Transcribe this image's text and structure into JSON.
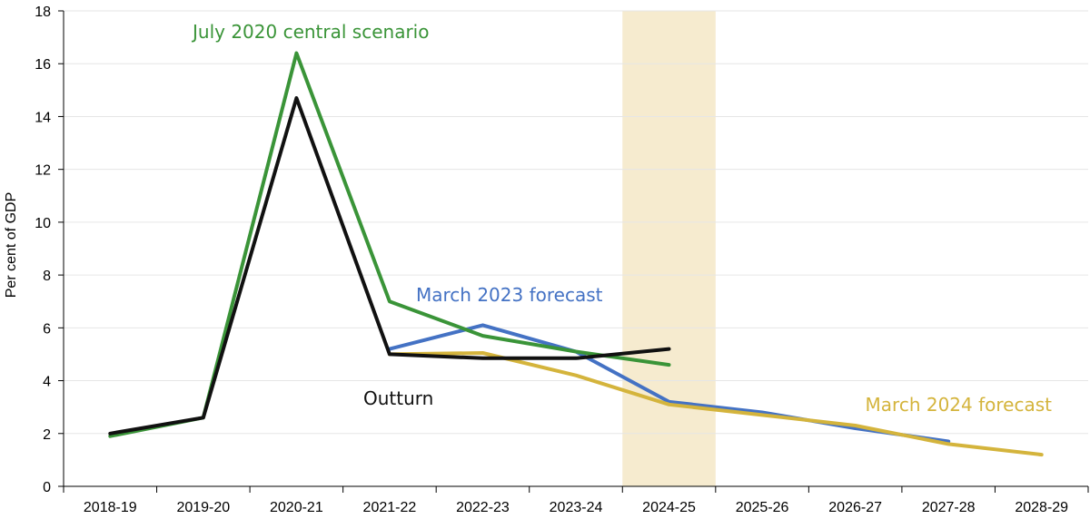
{
  "chart_data": {
    "type": "line",
    "title": "",
    "xlabel": "",
    "ylabel": "Per cent of GDP",
    "ylim": [
      0,
      18
    ],
    "yticks": [
      0,
      2,
      4,
      6,
      8,
      10,
      12,
      14,
      16,
      18
    ],
    "categories": [
      "2018-19",
      "2019-20",
      "2020-21",
      "2021-22",
      "2022-23",
      "2023-24",
      "2024-25",
      "2025-26",
      "2026-27",
      "2027-28",
      "2028-29"
    ],
    "highlight": {
      "category": "2024-25",
      "color": "#f6ebcf"
    },
    "grid": true,
    "series": [
      {
        "name": "March 2023 forecast",
        "color": "#4472c4",
        "values": [
          null,
          null,
          null,
          5.2,
          6.1,
          5.1,
          3.2,
          2.8,
          2.2,
          1.7,
          null
        ]
      },
      {
        "name": "March 2024 forecast",
        "color": "#d4b43c",
        "values": [
          null,
          null,
          null,
          5.0,
          5.05,
          4.2,
          3.1,
          2.7,
          2.3,
          1.6,
          1.2
        ]
      },
      {
        "name": "July 2020 central scenario",
        "color": "#3a9438",
        "values": [
          1.9,
          2.6,
          16.4,
          7.0,
          5.7,
          5.1,
          4.6,
          null,
          null,
          null,
          null
        ]
      },
      {
        "name": "Outturn",
        "color": "#111111",
        "values": [
          2.0,
          2.6,
          14.7,
          5.0,
          4.85,
          4.85,
          5.2,
          null,
          null,
          null,
          null
        ]
      }
    ]
  }
}
